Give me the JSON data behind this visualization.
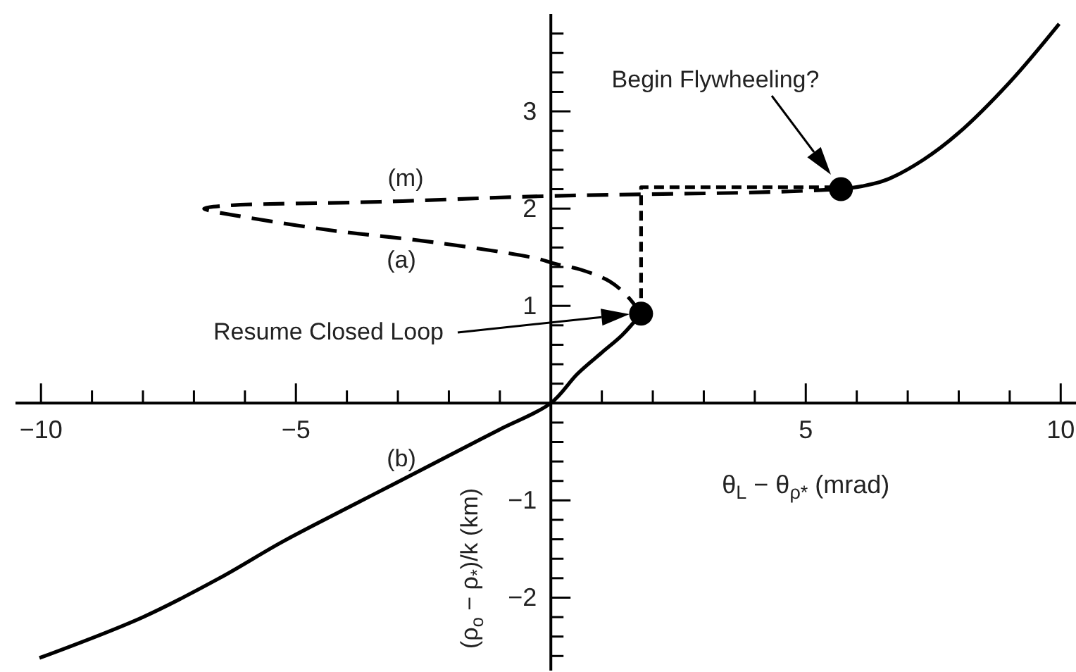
{
  "chart_data": {
    "type": "line",
    "xlabel": "θ$_{L}$ − θ$_{ρ*}$ (mrad)",
    "ylabel": "(ρ$_{o}$ − ρ$_{*}$)/k (km)",
    "xlim": [
      -10.5,
      10.3
    ],
    "ylim": [
      -2.75,
      4.0
    ],
    "xticks": [
      -10,
      {
        "value": -9,
        "label": null
      },
      {
        "value": -8,
        "label": null
      },
      {
        "value": -7,
        "label": null
      },
      {
        "value": -6,
        "label": null
      },
      -5,
      {
        "value": -4,
        "label": null
      },
      {
        "value": -3,
        "label": null
      },
      {
        "value": -2,
        "label": null
      },
      {
        "value": -1,
        "label": null
      },
      {
        "value": 1,
        "label": null
      },
      {
        "value": 2,
        "label": null
      },
      {
        "value": 3,
        "label": null
      },
      {
        "value": 4,
        "label": null
      },
      5,
      {
        "value": 6,
        "label": null
      },
      {
        "value": 7,
        "label": null
      },
      {
        "value": 8,
        "label": null
      },
      {
        "value": 9,
        "label": null
      },
      10
    ],
    "yticks": [
      {
        "value": -2.6,
        "label": null
      },
      {
        "value": -2.4,
        "label": null
      },
      {
        "value": -2.2,
        "label": null
      },
      -2,
      {
        "value": -1.8,
        "label": null
      },
      {
        "value": -1.6,
        "label": null
      },
      {
        "value": -1.4,
        "label": null
      },
      {
        "value": -1.2,
        "label": null
      },
      -1,
      {
        "value": -0.8,
        "label": null
      },
      {
        "value": -0.6,
        "label": null
      },
      {
        "value": -0.4,
        "label": null
      },
      {
        "value": -0.2,
        "label": null
      },
      {
        "value": 0.2,
        "label": null
      },
      {
        "value": 0.4,
        "label": null
      },
      {
        "value": 0.6,
        "label": null
      },
      {
        "value": 0.8,
        "label": null
      },
      1,
      {
        "value": 1.2,
        "label": null
      },
      {
        "value": 1.4,
        "label": null
      },
      {
        "value": 1.6,
        "label": null
      },
      {
        "value": 1.8,
        "label": null
      },
      2,
      {
        "value": 2.2,
        "label": null
      },
      {
        "value": 2.4,
        "label": null
      },
      {
        "value": 2.6,
        "label": null
      },
      {
        "value": 2.8,
        "label": null
      },
      3,
      {
        "value": 3.2,
        "label": null
      },
      {
        "value": 3.4,
        "label": null
      },
      {
        "value": 3.6,
        "label": null
      },
      {
        "value": 3.8,
        "label": null
      }
    ],
    "grid": false,
    "series": [
      {
        "color": "#000000",
        "line_style": "solid",
        "x": [
          -10.03,
          -8,
          -6.5,
          -5.28,
          -4,
          -3.07,
          -2,
          -1,
          0,
          0.52,
          1,
          1.4,
          1.77
        ],
        "values": [
          -2.62,
          -2.2,
          -1.8,
          -1.43,
          -1.08,
          -0.83,
          -0.54,
          -0.27,
          0,
          0.3,
          0.52,
          0.7,
          0.92
        ]
      },
      {
        "color": "#000000",
        "line_style": "dashed",
        "x": [
          1.77,
          1.5,
          1.16,
          0.6,
          0.1,
          -0.3,
          -2.24,
          -4.36,
          -6.19,
          -6.7,
          -6.8,
          -6.38,
          -3.34,
          0,
          4.3,
          5.69
        ],
        "values": [
          0.92,
          1.1,
          1.25,
          1.37,
          1.43,
          1.49,
          1.65,
          1.78,
          1.93,
          1.98,
          2.0,
          2.03,
          2.07,
          2.13,
          2.17,
          2.2
        ]
      },
      {
        "color": "#000000",
        "line_style": "solid",
        "x": [
          5.69,
          6.1,
          6.6,
          7.3,
          7.98,
          9,
          9.97
        ],
        "values": [
          2.2,
          2.23,
          2.3,
          2.5,
          2.77,
          3.3,
          3.9
        ]
      },
      {
        "color": "#000000",
        "line_style": "dashed",
        "x": [
          1.77,
          1.77,
          5.69
        ],
        "values": [
          0.92,
          2.22,
          2.22
        ]
      },
      {
        "type": "scatter",
        "color": "#000000",
        "marker": "circle",
        "x": [
          1.77,
          5.69
        ],
        "values": [
          0.92,
          2.2
        ]
      }
    ],
    "annotations": [
      "Begin Flywheeling?",
      "Resume Closed Loop",
      "(m)",
      "(a)",
      "(b)"
    ]
  }
}
